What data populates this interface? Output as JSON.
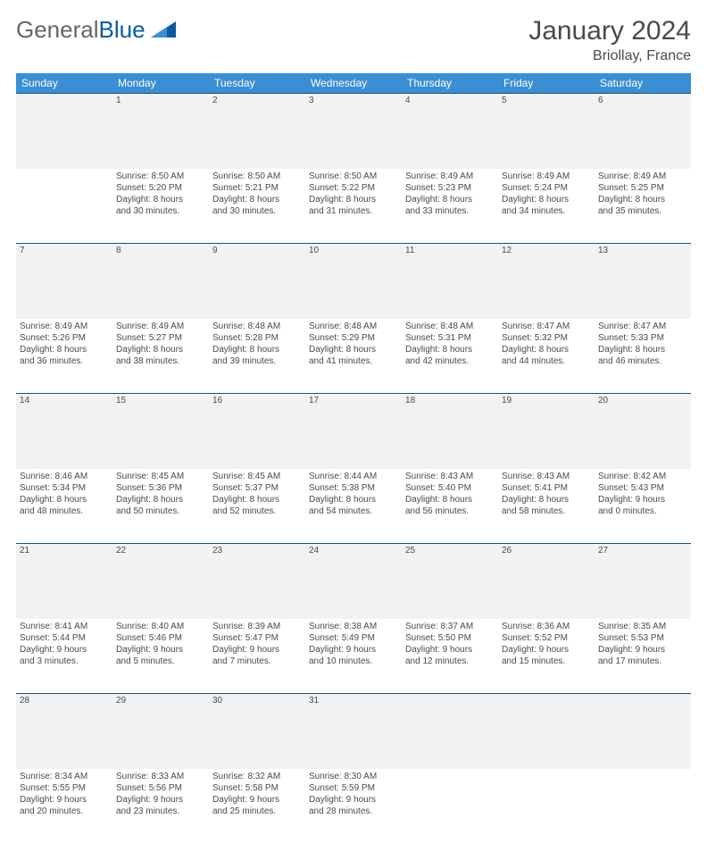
{
  "brand": {
    "part1": "General",
    "part2": "Blue"
  },
  "title": "January 2024",
  "location": "Briollay, France",
  "colors": {
    "header_bg": "#3a8fd4",
    "header_text": "#ffffff",
    "dayrow_bg": "#f0f2f3",
    "dayrow_border": "#1f4f7a",
    "text": "#4a4a4a",
    "brand_gray": "#666666",
    "brand_blue": "#0a5aa0"
  },
  "weekdays": [
    "Sunday",
    "Monday",
    "Tuesday",
    "Wednesday",
    "Thursday",
    "Friday",
    "Saturday"
  ],
  "weeks": [
    {
      "nums": [
        "",
        "1",
        "2",
        "3",
        "4",
        "5",
        "6"
      ],
      "cells": [
        null,
        {
          "sr": "Sunrise: 8:50 AM",
          "ss": "Sunset: 5:20 PM",
          "d1": "Daylight: 8 hours",
          "d2": "and 30 minutes."
        },
        {
          "sr": "Sunrise: 8:50 AM",
          "ss": "Sunset: 5:21 PM",
          "d1": "Daylight: 8 hours",
          "d2": "and 30 minutes."
        },
        {
          "sr": "Sunrise: 8:50 AM",
          "ss": "Sunset: 5:22 PM",
          "d1": "Daylight: 8 hours",
          "d2": "and 31 minutes."
        },
        {
          "sr": "Sunrise: 8:49 AM",
          "ss": "Sunset: 5:23 PM",
          "d1": "Daylight: 8 hours",
          "d2": "and 33 minutes."
        },
        {
          "sr": "Sunrise: 8:49 AM",
          "ss": "Sunset: 5:24 PM",
          "d1": "Daylight: 8 hours",
          "d2": "and 34 minutes."
        },
        {
          "sr": "Sunrise: 8:49 AM",
          "ss": "Sunset: 5:25 PM",
          "d1": "Daylight: 8 hours",
          "d2": "and 35 minutes."
        }
      ]
    },
    {
      "nums": [
        "7",
        "8",
        "9",
        "10",
        "11",
        "12",
        "13"
      ],
      "cells": [
        {
          "sr": "Sunrise: 8:49 AM",
          "ss": "Sunset: 5:26 PM",
          "d1": "Daylight: 8 hours",
          "d2": "and 36 minutes."
        },
        {
          "sr": "Sunrise: 8:49 AM",
          "ss": "Sunset: 5:27 PM",
          "d1": "Daylight: 8 hours",
          "d2": "and 38 minutes."
        },
        {
          "sr": "Sunrise: 8:48 AM",
          "ss": "Sunset: 5:28 PM",
          "d1": "Daylight: 8 hours",
          "d2": "and 39 minutes."
        },
        {
          "sr": "Sunrise: 8:48 AM",
          "ss": "Sunset: 5:29 PM",
          "d1": "Daylight: 8 hours",
          "d2": "and 41 minutes."
        },
        {
          "sr": "Sunrise: 8:48 AM",
          "ss": "Sunset: 5:31 PM",
          "d1": "Daylight: 8 hours",
          "d2": "and 42 minutes."
        },
        {
          "sr": "Sunrise: 8:47 AM",
          "ss": "Sunset: 5:32 PM",
          "d1": "Daylight: 8 hours",
          "d2": "and 44 minutes."
        },
        {
          "sr": "Sunrise: 8:47 AM",
          "ss": "Sunset: 5:33 PM",
          "d1": "Daylight: 8 hours",
          "d2": "and 46 minutes."
        }
      ]
    },
    {
      "nums": [
        "14",
        "15",
        "16",
        "17",
        "18",
        "19",
        "20"
      ],
      "cells": [
        {
          "sr": "Sunrise: 8:46 AM",
          "ss": "Sunset: 5:34 PM",
          "d1": "Daylight: 8 hours",
          "d2": "and 48 minutes."
        },
        {
          "sr": "Sunrise: 8:45 AM",
          "ss": "Sunset: 5:36 PM",
          "d1": "Daylight: 8 hours",
          "d2": "and 50 minutes."
        },
        {
          "sr": "Sunrise: 8:45 AM",
          "ss": "Sunset: 5:37 PM",
          "d1": "Daylight: 8 hours",
          "d2": "and 52 minutes."
        },
        {
          "sr": "Sunrise: 8:44 AM",
          "ss": "Sunset: 5:38 PM",
          "d1": "Daylight: 8 hours",
          "d2": "and 54 minutes."
        },
        {
          "sr": "Sunrise: 8:43 AM",
          "ss": "Sunset: 5:40 PM",
          "d1": "Daylight: 8 hours",
          "d2": "and 56 minutes."
        },
        {
          "sr": "Sunrise: 8:43 AM",
          "ss": "Sunset: 5:41 PM",
          "d1": "Daylight: 8 hours",
          "d2": "and 58 minutes."
        },
        {
          "sr": "Sunrise: 8:42 AM",
          "ss": "Sunset: 5:43 PM",
          "d1": "Daylight: 9 hours",
          "d2": "and 0 minutes."
        }
      ]
    },
    {
      "nums": [
        "21",
        "22",
        "23",
        "24",
        "25",
        "26",
        "27"
      ],
      "cells": [
        {
          "sr": "Sunrise: 8:41 AM",
          "ss": "Sunset: 5:44 PM",
          "d1": "Daylight: 9 hours",
          "d2": "and 3 minutes."
        },
        {
          "sr": "Sunrise: 8:40 AM",
          "ss": "Sunset: 5:46 PM",
          "d1": "Daylight: 9 hours",
          "d2": "and 5 minutes."
        },
        {
          "sr": "Sunrise: 8:39 AM",
          "ss": "Sunset: 5:47 PM",
          "d1": "Daylight: 9 hours",
          "d2": "and 7 minutes."
        },
        {
          "sr": "Sunrise: 8:38 AM",
          "ss": "Sunset: 5:49 PM",
          "d1": "Daylight: 9 hours",
          "d2": "and 10 minutes."
        },
        {
          "sr": "Sunrise: 8:37 AM",
          "ss": "Sunset: 5:50 PM",
          "d1": "Daylight: 9 hours",
          "d2": "and 12 minutes."
        },
        {
          "sr": "Sunrise: 8:36 AM",
          "ss": "Sunset: 5:52 PM",
          "d1": "Daylight: 9 hours",
          "d2": "and 15 minutes."
        },
        {
          "sr": "Sunrise: 8:35 AM",
          "ss": "Sunset: 5:53 PM",
          "d1": "Daylight: 9 hours",
          "d2": "and 17 minutes."
        }
      ]
    },
    {
      "nums": [
        "28",
        "29",
        "30",
        "31",
        "",
        "",
        ""
      ],
      "cells": [
        {
          "sr": "Sunrise: 8:34 AM",
          "ss": "Sunset: 5:55 PM",
          "d1": "Daylight: 9 hours",
          "d2": "and 20 minutes."
        },
        {
          "sr": "Sunrise: 8:33 AM",
          "ss": "Sunset: 5:56 PM",
          "d1": "Daylight: 9 hours",
          "d2": "and 23 minutes."
        },
        {
          "sr": "Sunrise: 8:32 AM",
          "ss": "Sunset: 5:58 PM",
          "d1": "Daylight: 9 hours",
          "d2": "and 25 minutes."
        },
        {
          "sr": "Sunrise: 8:30 AM",
          "ss": "Sunset: 5:59 PM",
          "d1": "Daylight: 9 hours",
          "d2": "and 28 minutes."
        },
        null,
        null,
        null
      ]
    }
  ]
}
